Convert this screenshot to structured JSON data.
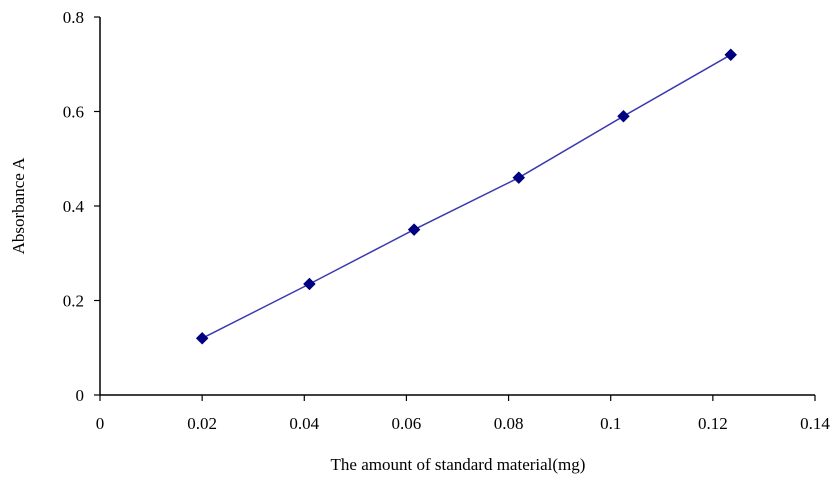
{
  "chart_data": {
    "type": "line",
    "title": "",
    "xlabel": "The amount of standard material(mg)",
    "ylabel": "Absorbance A",
    "xlim": [
      0,
      0.14
    ],
    "ylim": [
      0,
      0.8
    ],
    "x_ticks": [
      "0",
      "0.02",
      "0.04",
      "0.06",
      "0.08",
      "0.1",
      "0.12",
      "0.14"
    ],
    "y_ticks": [
      "0",
      "0.2",
      "0.4",
      "0.6",
      "0.8"
    ],
    "grid": false,
    "legend": "none",
    "series": [
      {
        "x": [
          0.02,
          0.041,
          0.0615,
          0.082,
          0.1025,
          0.1235
        ],
        "y": [
          0.12,
          0.235,
          0.35,
          0.46,
          0.59,
          0.72
        ],
        "color": "#000080",
        "line_color": "#3a3ab0",
        "marker": "diamond"
      }
    ]
  }
}
